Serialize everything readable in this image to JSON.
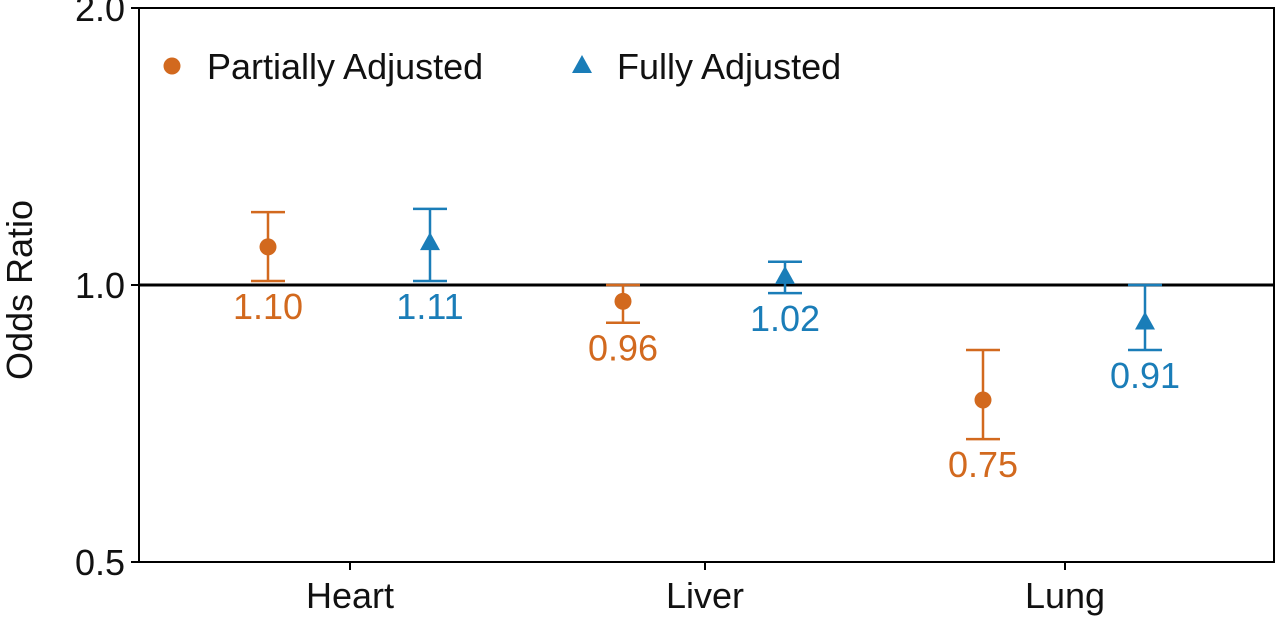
{
  "colors": {
    "partial": "#D2691E",
    "full": "#1A7DB8",
    "reference_line": "#000000",
    "axis": "#000000",
    "text": "#111111"
  },
  "chart_data": {
    "type": "scatter",
    "categories": [
      "Heart",
      "Liver",
      "Lung"
    ],
    "ylabel": "Odds Ratio",
    "xlabel": "",
    "title": "",
    "yscale": "log",
    "ylim": [
      0.5,
      2.0
    ],
    "yticks": [
      0.5,
      1.0,
      2.0
    ],
    "ytick_labels": [
      "0.5",
      "1.0",
      "2.0"
    ],
    "reference_line": 1.0,
    "grid": false,
    "legend_position": "top-left",
    "series": [
      {
        "name": "Partially Adjusted",
        "marker": "circle",
        "color": "#D2691E",
        "values": [
          1.1,
          0.96,
          0.75
        ],
        "lower": [
          1.01,
          0.91,
          0.68
        ],
        "upper": [
          1.2,
          1.0,
          0.85
        ],
        "labels": [
          "1.10",
          "0.96",
          "0.75"
        ]
      },
      {
        "name": "Fully Adjusted",
        "marker": "triangle",
        "color": "#1A7DB8",
        "values": [
          1.11,
          1.02,
          0.91
        ],
        "lower": [
          1.01,
          0.98,
          0.85
        ],
        "upper": [
          1.21,
          1.06,
          1.0
        ],
        "labels": [
          "1.11",
          "1.02",
          "0.91"
        ]
      }
    ]
  }
}
